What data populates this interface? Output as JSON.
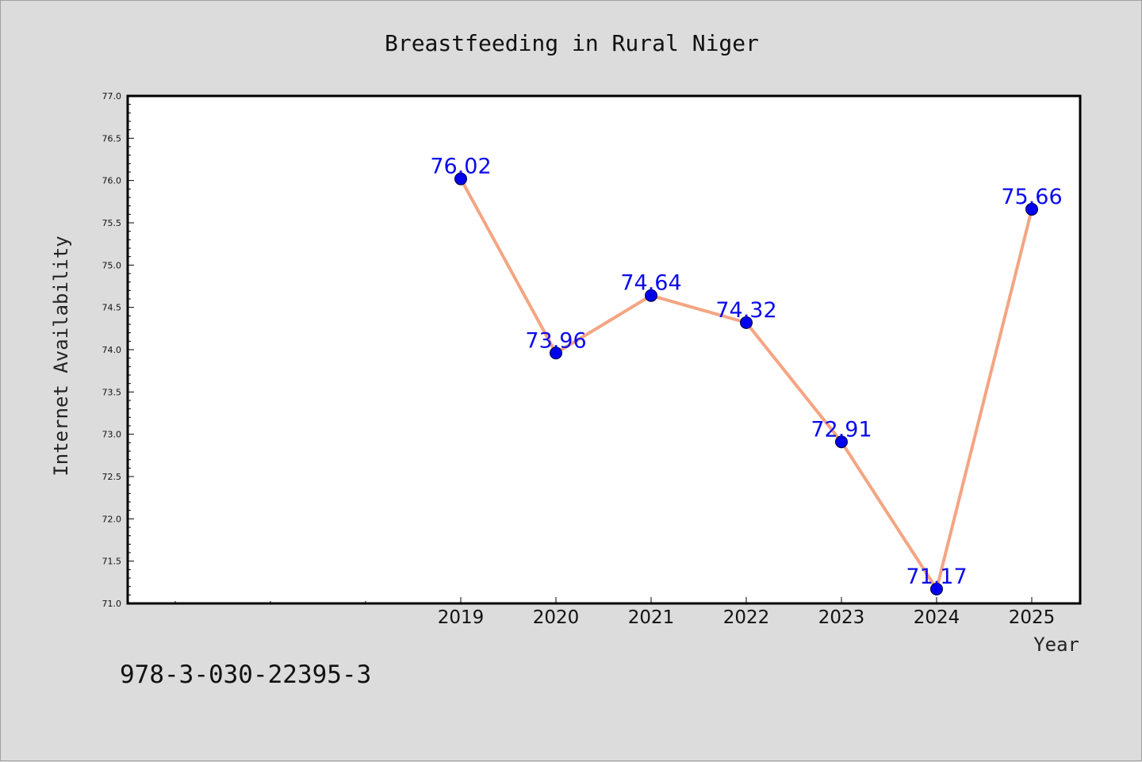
{
  "footer": {
    "code": "978-3-030-22395-3"
  },
  "chart_data": {
    "type": "line",
    "title": "Breastfeeding in Rural Niger",
    "xlabel": "Year",
    "ylabel": "Internet Availability",
    "x": [
      "2019",
      "2020",
      "2021",
      "2022",
      "2023",
      "2024",
      "2025"
    ],
    "series": [
      {
        "values": [
          76.02,
          73.96,
          74.64,
          74.32,
          72.91,
          71.17,
          75.66
        ]
      }
    ],
    "data_labels": [
      "76.02",
      "73.96",
      "74.64",
      "74.32",
      "72.91",
      "71.17",
      "75.66"
    ],
    "ylim": [
      71.0,
      77.0
    ],
    "yticks": [
      "71.0",
      "71.5",
      "72.0",
      "72.5",
      "73.0",
      "73.5",
      "74.0",
      "74.5",
      "75.0",
      "75.5",
      "76.0",
      "76.5",
      "77.0"
    ],
    "grid": false,
    "colors": {
      "line": "#f4a582",
      "marker": "#0000ee",
      "label": "#0a0aee"
    }
  }
}
